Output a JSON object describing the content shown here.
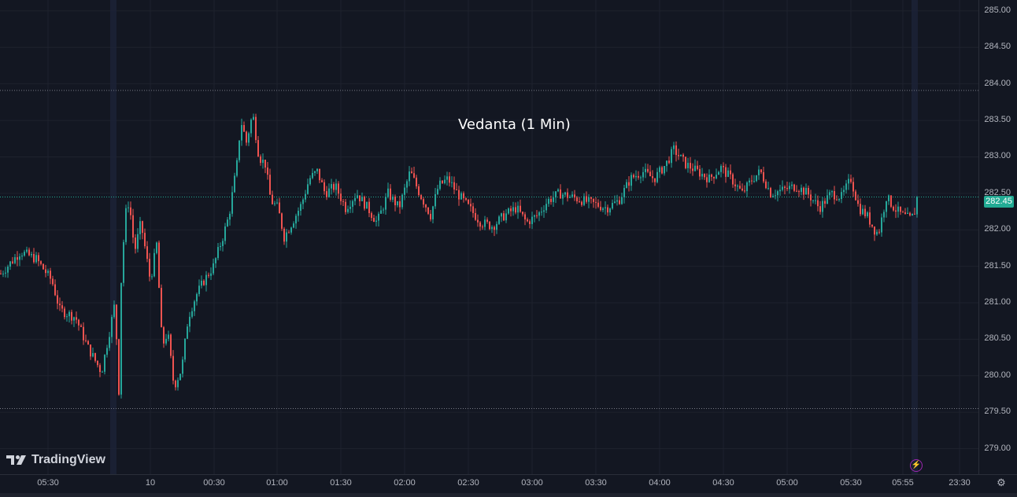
{
  "chart_data": {
    "type": "candlestick",
    "title": "Vedanta (1 Min)",
    "y_ticks": [
      "285.00",
      "284.50",
      "284.00",
      "283.50",
      "283.00",
      "282.50",
      "282.00",
      "281.50",
      "281.00",
      "280.50",
      "280.00",
      "279.50",
      "279.00"
    ],
    "x_ticks": [
      "05:30",
      "10",
      "00:30",
      "01:00",
      "01:30",
      "02:00",
      "02:30",
      "03:00",
      "03:30",
      "04:00",
      "04:30",
      "05:00",
      "05:30",
      "05:55",
      "23:30"
    ],
    "ylim": [
      278.65,
      285.15
    ],
    "last_price": "282.45",
    "reference_lines": [
      283.91,
      282.45,
      279.55
    ],
    "colors": {
      "up": "#26a69a",
      "down": "#ef5350",
      "background": "#131722",
      "grid": "#1e222d",
      "last_price_bg": "#22ab94"
    },
    "close_path": [
      [
        0,
        281.4
      ],
      [
        25,
        281.7
      ],
      [
        45,
        281.6
      ],
      [
        65,
        281.3
      ],
      [
        75,
        280.9
      ],
      [
        95,
        280.8
      ],
      [
        110,
        280.4
      ],
      [
        128,
        280.05
      ],
      [
        138,
        280.6
      ],
      [
        145,
        281.0
      ],
      [
        150,
        279.8
      ],
      [
        153,
        281.3
      ],
      [
        158,
        282.2
      ],
      [
        163,
        282.4
      ],
      [
        170,
        281.7
      ],
      [
        178,
        282.1
      ],
      [
        190,
        281.3
      ],
      [
        198,
        281.8
      ],
      [
        205,
        280.4
      ],
      [
        212,
        280.6
      ],
      [
        220,
        279.85
      ],
      [
        230,
        280.1
      ],
      [
        238,
        280.8
      ],
      [
        248,
        281.1
      ],
      [
        258,
        281.3
      ],
      [
        270,
        281.5
      ],
      [
        282,
        281.9
      ],
      [
        290,
        282.2
      ],
      [
        300,
        282.9
      ],
      [
        305,
        283.5
      ],
      [
        312,
        283.2
      ],
      [
        320,
        283.6
      ],
      [
        328,
        283.0
      ],
      [
        336,
        282.9
      ],
      [
        343,
        282.4
      ],
      [
        352,
        282.3
      ],
      [
        360,
        281.9
      ],
      [
        370,
        282.1
      ],
      [
        382,
        282.35
      ],
      [
        392,
        282.7
      ],
      [
        402,
        282.8
      ],
      [
        412,
        282.5
      ],
      [
        425,
        282.6
      ],
      [
        438,
        282.3
      ],
      [
        452,
        282.5
      ],
      [
        466,
        282.3
      ],
      [
        478,
        282.1
      ],
      [
        492,
        282.5
      ],
      [
        506,
        282.3
      ],
      [
        520,
        282.8
      ],
      [
        532,
        282.5
      ],
      [
        546,
        282.2
      ],
      [
        556,
        282.6
      ],
      [
        568,
        282.7
      ],
      [
        580,
        282.5
      ],
      [
        595,
        282.3
      ],
      [
        610,
        282.1
      ],
      [
        625,
        282.05
      ],
      [
        640,
        282.2
      ],
      [
        655,
        282.3
      ],
      [
        668,
        282.1
      ],
      [
        682,
        282.2
      ],
      [
        695,
        282.4
      ],
      [
        710,
        282.5
      ],
      [
        725,
        282.45
      ],
      [
        740,
        282.4
      ],
      [
        755,
        282.35
      ],
      [
        770,
        282.3
      ],
      [
        785,
        282.4
      ],
      [
        800,
        282.7
      ],
      [
        815,
        282.8
      ],
      [
        830,
        282.7
      ],
      [
        845,
        282.9
      ],
      [
        855,
        283.1
      ],
      [
        870,
        282.9
      ],
      [
        885,
        282.8
      ],
      [
        900,
        282.7
      ],
      [
        915,
        282.85
      ],
      [
        928,
        282.7
      ],
      [
        942,
        282.5
      ],
      [
        955,
        282.7
      ],
      [
        965,
        282.8
      ],
      [
        978,
        282.5
      ],
      [
        995,
        282.55
      ],
      [
        1010,
        282.6
      ],
      [
        1025,
        282.5
      ],
      [
        1040,
        282.3
      ],
      [
        1055,
        282.5
      ],
      [
        1068,
        282.45
      ],
      [
        1080,
        282.7
      ],
      [
        1090,
        282.3
      ],
      [
        1100,
        282.2
      ],
      [
        1110,
        282.0
      ],
      [
        1115,
        281.95
      ],
      [
        1125,
        282.45
      ],
      [
        1135,
        282.3
      ],
      [
        1145,
        282.2
      ],
      [
        1155,
        282.15
      ],
      [
        1160,
        282.2
      ],
      [
        1165,
        282.45
      ]
    ]
  },
  "branding": {
    "logo_text": "TradingView"
  }
}
